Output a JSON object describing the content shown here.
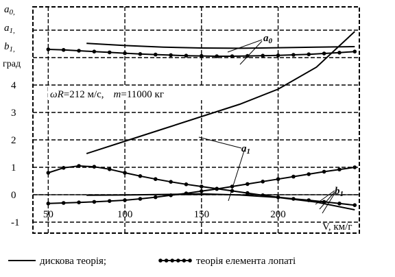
{
  "chart_data": {
    "type": "line",
    "y_label_lines": [
      "a",
      "a",
      "b",
      "град"
    ],
    "y_label_subscripts": [
      "0,",
      "1,",
      "1,"
    ],
    "x_axis_label": "V, км/г",
    "x_ticks": [
      50,
      100,
      150,
      200
    ],
    "y_ticks": [
      -1,
      0,
      1,
      2,
      3,
      4
    ],
    "xlim": [
      40,
      253
    ],
    "ylim": [
      -1.4,
      6.85
    ],
    "annotation": {
      "omega_symbol": "ωR",
      "omega_value": "=212 м/с,",
      "mass_symbol": "m",
      "mass_value": "=11000 кг"
    },
    "curve_labels": {
      "a0": {
        "base": "a",
        "sub": "0"
      },
      "a1": {
        "base": "a",
        "sub": "1"
      },
      "b1": {
        "base": "b",
        "sub": "1"
      }
    },
    "legend": {
      "disk_theory": "дискова теорія;",
      "blade_element_theory": "теорія елемента лопаті"
    },
    "series": [
      {
        "id": "a0_disk",
        "style": "solid",
        "x": [
          75,
          100,
          125,
          150,
          175,
          200,
          225,
          250
        ],
        "y": [
          5.52,
          5.44,
          5.38,
          5.35,
          5.34,
          5.36,
          5.38,
          5.4
        ]
      },
      {
        "id": "a0_blade",
        "style": "dotted",
        "x": [
          50,
          60,
          70,
          80,
          90,
          100,
          110,
          120,
          130,
          140,
          150,
          160,
          170,
          180,
          190,
          200,
          210,
          220,
          230,
          240,
          250
        ],
        "y": [
          5.3,
          5.28,
          5.25,
          5.22,
          5.19,
          5.16,
          5.13,
          5.11,
          5.09,
          5.07,
          5.06,
          5.05,
          5.05,
          5.06,
          5.07,
          5.08,
          5.1,
          5.12,
          5.15,
          5.18,
          5.22
        ]
      },
      {
        "id": "a1_disk",
        "style": "solid",
        "x": [
          75,
          100,
          125,
          150,
          175,
          200,
          225,
          250
        ],
        "y": [
          1.5,
          1.95,
          2.4,
          2.85,
          3.3,
          3.85,
          4.65,
          5.95
        ]
      },
      {
        "id": "a1_blade",
        "style": "dotted",
        "x": [
          50,
          60,
          70,
          80,
          90,
          100,
          110,
          120,
          130,
          140,
          150,
          160,
          170,
          180,
          190,
          200,
          210,
          220,
          230,
          240,
          250
        ],
        "y": [
          0.8,
          0.98,
          1.05,
          1.02,
          0.93,
          0.8,
          0.68,
          0.57,
          0.47,
          0.38,
          0.3,
          0.22,
          0.14,
          0.06,
          -0.02,
          -0.09,
          -0.15,
          -0.2,
          -0.26,
          -0.32,
          -0.38
        ]
      },
      {
        "id": "b1_disk",
        "style": "solid",
        "x": [
          75,
          100,
          125,
          150,
          175,
          200,
          225,
          250
        ],
        "y": [
          -0.02,
          -0.01,
          0.01,
          0.03,
          -0.01,
          -0.1,
          -0.27,
          -0.55
        ]
      },
      {
        "id": "b1_blade",
        "style": "dotted",
        "x": [
          50,
          60,
          70,
          80,
          90,
          100,
          110,
          120,
          130,
          140,
          150,
          160,
          170,
          180,
          190,
          200,
          210,
          220,
          230,
          240,
          250
        ],
        "y": [
          -0.32,
          -0.3,
          -0.28,
          -0.26,
          -0.23,
          -0.2,
          -0.15,
          -0.09,
          -0.02,
          0.05,
          0.13,
          0.21,
          0.3,
          0.39,
          0.48,
          0.57,
          0.66,
          0.75,
          0.84,
          0.92,
          1.0
        ]
      }
    ],
    "grid": true,
    "colors": {
      "line": "#000000",
      "grid": "#000000",
      "background": "#ffffff"
    }
  }
}
